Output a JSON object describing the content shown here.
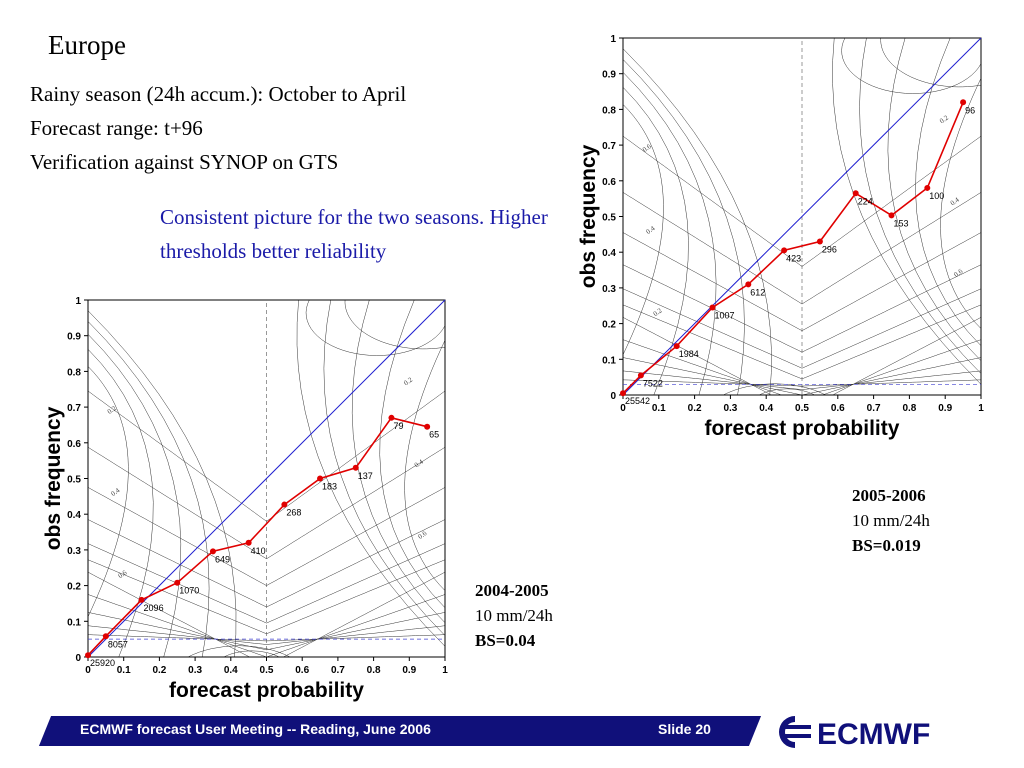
{
  "slide": {
    "title": "Europe",
    "info_lines": [
      "Rainy season (24h accum.): October to April",
      "Forecast range: t+96",
      "Verification against SYNOP on GTS"
    ],
    "note": "Consistent picture for the two seasons. Higher thresholds better reliability",
    "caption_2004": {
      "season": "2004-2005",
      "threshold": "10 mm/24h",
      "bs": "BS=0.04"
    },
    "caption_2005": {
      "season": "2005-2006",
      "threshold": "10 mm/24h",
      "bs": "BS=0.019"
    },
    "footer": {
      "text": "ECMWF forecast User Meeting -- Reading, June 2006",
      "slide": "Slide 20",
      "logo": "ECMWF"
    },
    "colors": {
      "footer_band": "#10107a",
      "logo": "#10107a",
      "note_text": "#1a1aa8",
      "reliability_line": "#e00000",
      "diagonal": "#2020d0"
    }
  },
  "chart_data": [
    {
      "type": "line",
      "season": "2004-2005",
      "xlabel": "forecast probability",
      "ylabel": "obs frequency",
      "xlim": [
        0,
        1
      ],
      "ylim": [
        0,
        1
      ],
      "ticks": [
        "0",
        "0.1",
        "0.2",
        "0.3",
        "0.4",
        "0.5",
        "0.6",
        "0.7",
        "0.8",
        "0.9",
        "1"
      ],
      "climatology": 0.05,
      "contour_labels": [
        "0.2",
        "0.4",
        "0.6",
        "0.2",
        "0.4",
        "0.6"
      ],
      "x": [
        0,
        0.05,
        0.15,
        0.25,
        0.35,
        0.45,
        0.55,
        0.65,
        0.75,
        0.85,
        0.95
      ],
      "y": [
        0.005,
        0.058,
        0.16,
        0.208,
        0.296,
        0.32,
        0.427,
        0.5,
        0.53,
        0.67,
        0.645
      ],
      "counts": [
        "25920",
        "8057",
        "2096",
        "1070",
        "649",
        "410",
        "268",
        "183",
        "137",
        "79",
        "65"
      ]
    },
    {
      "type": "line",
      "season": "2005-2006",
      "xlabel": "forecast probability",
      "ylabel": "obs frequency",
      "xlim": [
        0,
        1
      ],
      "ylim": [
        0,
        1
      ],
      "ticks": [
        "0",
        "0.1",
        "0.2",
        "0.3",
        "0.4",
        "0.5",
        "0.6",
        "0.7",
        "0.8",
        "0.9",
        "1"
      ],
      "climatology": 0.03,
      "contour_labels": [
        "0.6",
        "0.4",
        "0.2",
        "0.2",
        "0.4",
        "0.6"
      ],
      "x": [
        0,
        0.05,
        0.15,
        0.25,
        0.35,
        0.45,
        0.55,
        0.65,
        0.75,
        0.85,
        0.95
      ],
      "y": [
        0.005,
        0.055,
        0.137,
        0.245,
        0.31,
        0.405,
        0.43,
        0.565,
        0.503,
        0.58,
        0.82
      ],
      "counts": [
        "25542",
        "7522",
        "1984",
        "1007",
        "612",
        "423",
        "296",
        "224",
        "153",
        "100",
        "96"
      ]
    }
  ]
}
